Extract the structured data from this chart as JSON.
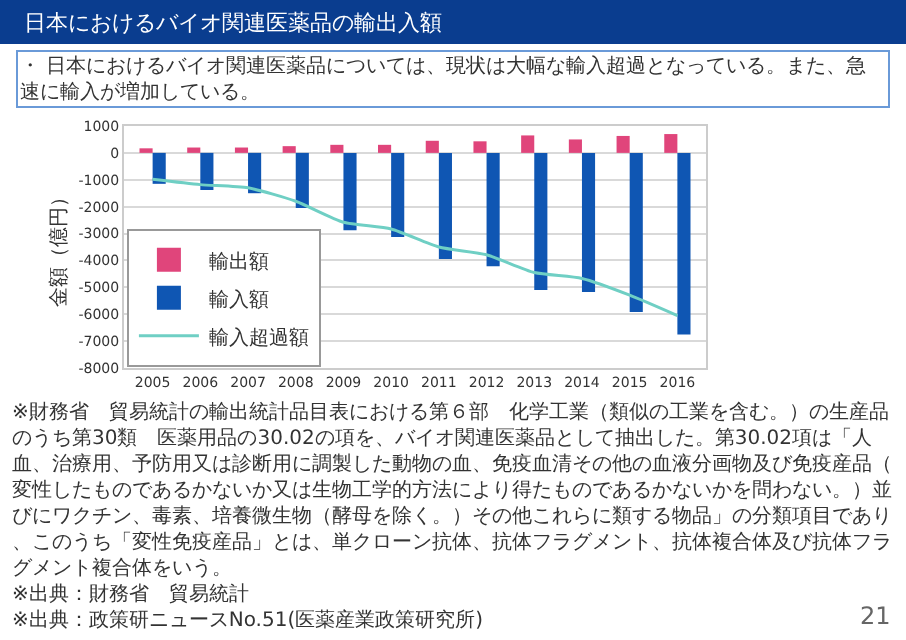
{
  "chart_data": {
    "type": "bar",
    "title": "日本におけるバイオ関連医薬品の輸出入額",
    "subtitle": "・ 日本におけるバイオ関連医薬品については、現状は大幅な輸入超過となっている。また、急速に輸入が増加している。",
    "ylabel": "金額（億円）",
    "categories": [
      "2005",
      "2006",
      "2007",
      "2008",
      "2009",
      "2010",
      "2011",
      "2012",
      "2013",
      "2014",
      "2015",
      "2016"
    ],
    "series": [
      {
        "name": "輸出額",
        "color": "#e0457b",
        "values": [
          170,
          200,
          200,
          250,
          300,
          300,
          450,
          430,
          650,
          500,
          630,
          700
        ]
      },
      {
        "name": "輸入額",
        "color": "#0f56b3",
        "values": [
          -1150,
          -1380,
          -1500,
          -2050,
          -2880,
          -3130,
          -3950,
          -4220,
          -5100,
          -5170,
          -5920,
          -6750
        ]
      },
      {
        "name": "輸入超過額",
        "color": "#6fcfc4",
        "type": "line",
        "marker": "none",
        "values": [
          -980,
          -1180,
          -1300,
          -1800,
          -2580,
          -2830,
          -3500,
          -3790,
          -4450,
          -4670,
          -5290,
          -6050
        ]
      }
    ],
    "ylim": [
      -8000,
      1000
    ],
    "yticks": [
      -8000,
      -7000,
      -6000,
      -5000,
      -4000,
      -3000,
      -2000,
      -1000,
      0,
      1000
    ],
    "grid": "y",
    "legend": "bottom left",
    "annotations": [
      "※財務省　貿易統計の輸出統計品目表における第６部　化学工業（類似の工業を含む。）の生産品のうち第30類　医薬用品の30.02の項を、バイオ関連医薬品として抽出した。第30.02項は「人血、治療用、予防用又は診断用に調製した動物の血、免疫血清その他の血液分画物及び免疫産品（変性したものであるかないか又は生物工学的方法により得たものであるかないかを問わない。）並びにワクチン、毒素、培養微生物（酵母を除く。）その他これらに類する物品」の分類項目であり、このうち「変性免疫産品」とは、単クローン抗体、抗体フラグメント、抗体複合体及び抗体フラグメント複合体をいう。",
      "※出典：財務省　貿易統計",
      "※出典：政策研ニュースNo.51(医薬産業政策研究所)",
      "21"
    ]
  }
}
